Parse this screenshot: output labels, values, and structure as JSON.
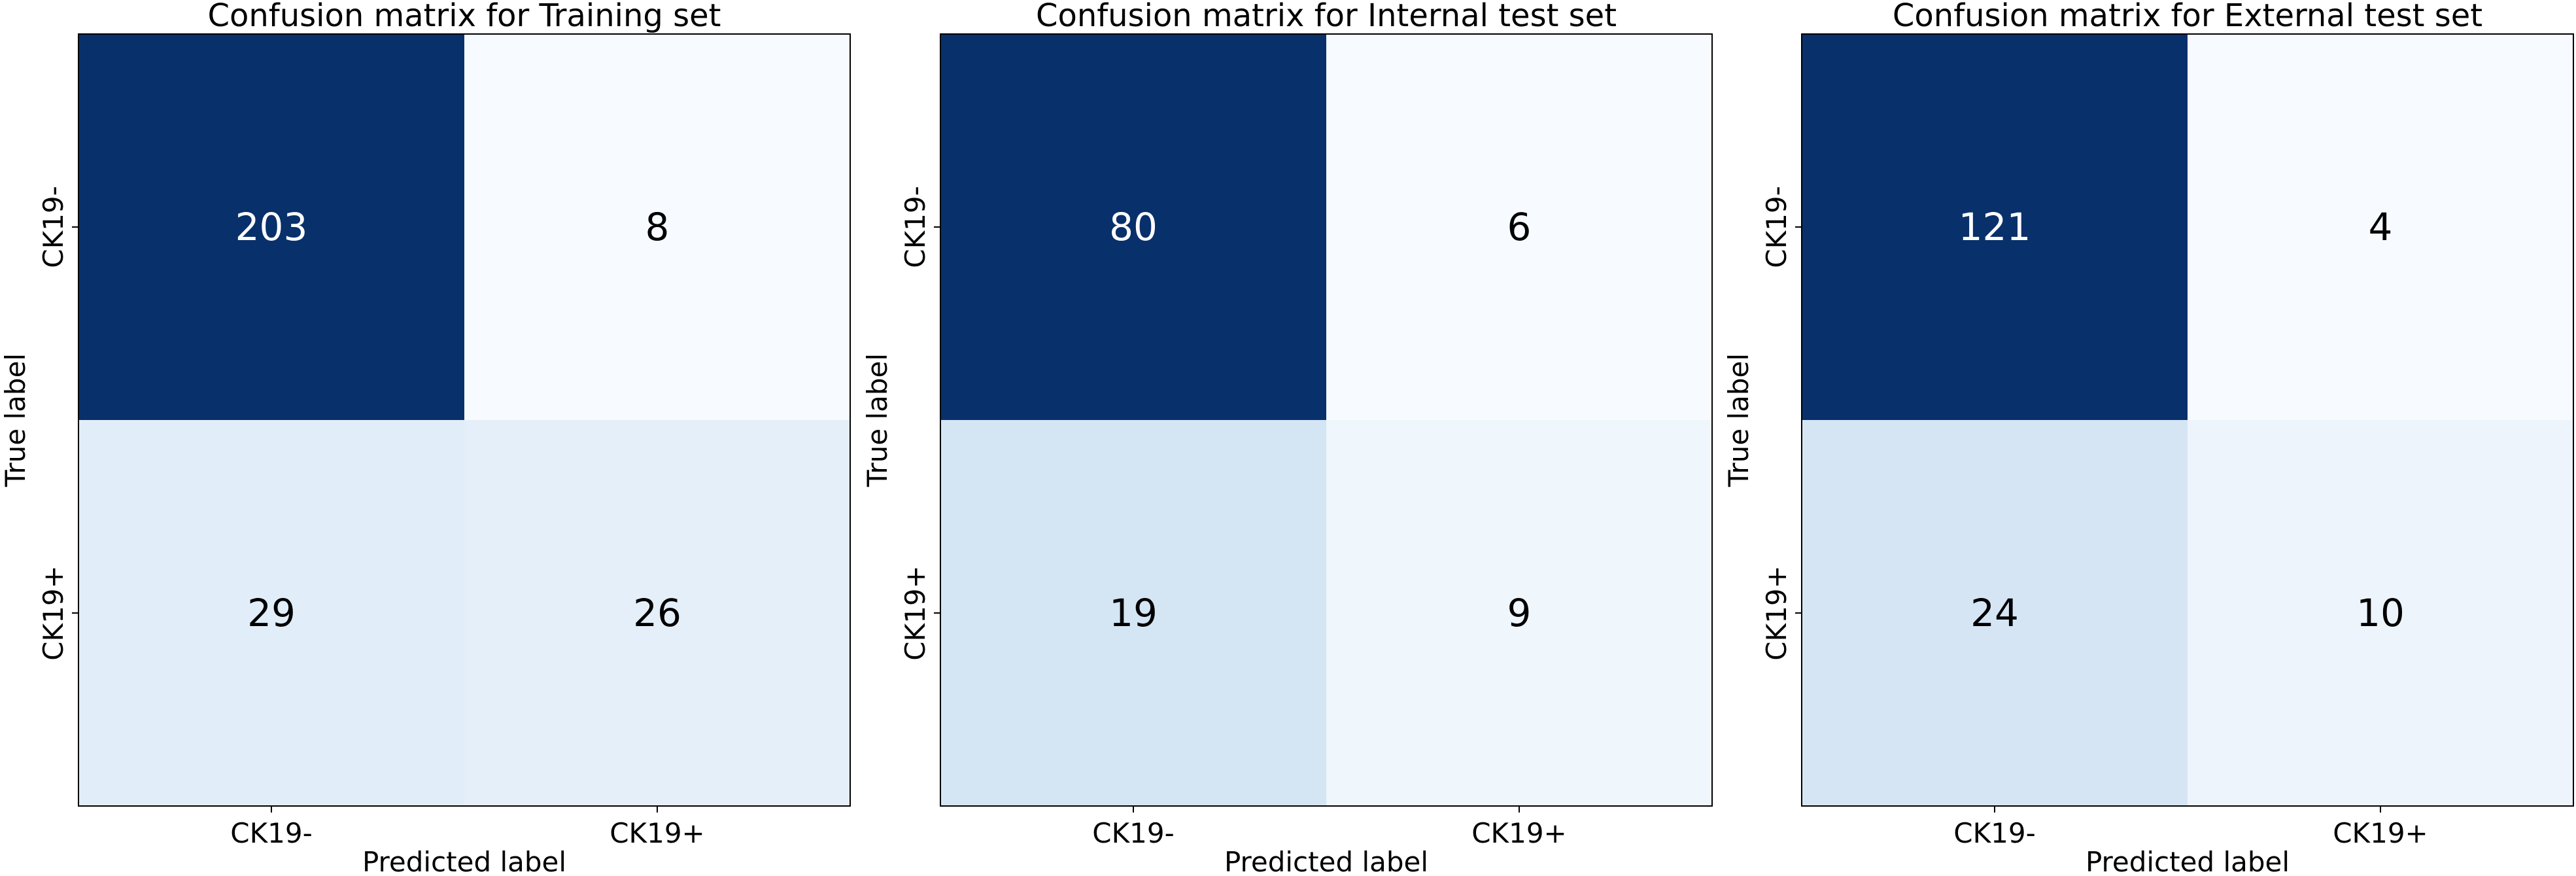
{
  "chart_data": [
    {
      "type": "heatmap",
      "title": "Confusion matrix for Training set",
      "xlabel": "Predicted label",
      "ylabel": "True label",
      "x_categories": [
        "CK19-",
        "CK19+"
      ],
      "y_categories": [
        "CK19-",
        "CK19+"
      ],
      "values": [
        [
          203,
          8
        ],
        [
          29,
          26
        ]
      ],
      "colormap": "Blues"
    },
    {
      "type": "heatmap",
      "title": "Confusion matrix for Internal test set",
      "xlabel": "Predicted label",
      "ylabel": "True label",
      "x_categories": [
        "CK19-",
        "CK19+"
      ],
      "y_categories": [
        "CK19-",
        "CK19+"
      ],
      "values": [
        [
          80,
          6
        ],
        [
          19,
          9
        ]
      ],
      "colormap": "Blues"
    },
    {
      "type": "heatmap",
      "title": "Confusion matrix for External test set",
      "xlabel": "Predicted label",
      "ylabel": "True label",
      "x_categories": [
        "CK19-",
        "CK19+"
      ],
      "y_categories": [
        "CK19-",
        "CK19+"
      ],
      "values": [
        [
          121,
          4
        ],
        [
          24,
          10
        ]
      ],
      "colormap": "Blues"
    }
  ],
  "colors": {
    "blues_low": "#f7fbff",
    "blues_mid_low": "#deebf7",
    "blues_mid": "#c6dbef",
    "blues_high": "#08306b",
    "text_on_dark": "#ffffff",
    "text_on_light": "#000000"
  }
}
